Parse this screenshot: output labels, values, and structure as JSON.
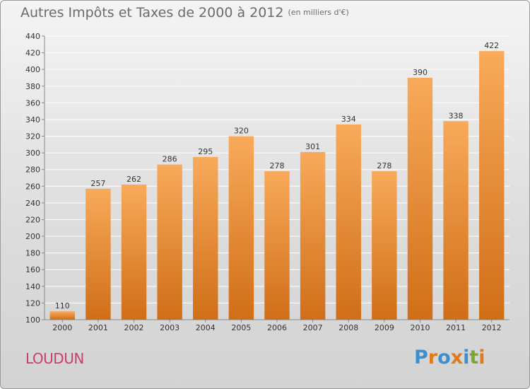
{
  "title": "Autres Impôts et Taxes de 2000 à 2012",
  "unit_note": "(en milliers d'€)",
  "commune": "LOUDUN",
  "logo": {
    "text": "Proxiti",
    "letter_colors": [
      "#3a8fd0",
      "#e07a1a",
      "#3a8fd0",
      "#e07a1a",
      "#3a8fd0",
      "#7aa830",
      "#e07a1a"
    ]
  },
  "colors": {
    "bar_top": "#f8aa5a",
    "bar_bottom": "#d06e18",
    "grid": "#ffffff",
    "axis_text": "#333333",
    "title": "#6b6b6b",
    "commune": "#c8406a"
  },
  "chart_data": {
    "type": "bar",
    "title": "Autres Impôts et Taxes de 2000 à 2012",
    "subtitle": "(en milliers d'€)",
    "categories": [
      "2000",
      "2001",
      "2002",
      "2003",
      "2004",
      "2005",
      "2006",
      "2007",
      "2008",
      "2009",
      "2010",
      "2011",
      "2012"
    ],
    "values": [
      110,
      257,
      262,
      286,
      295,
      320,
      278,
      301,
      334,
      278,
      390,
      338,
      422
    ],
    "ylim": [
      100,
      440
    ],
    "yticks": [
      100,
      120,
      140,
      160,
      180,
      200,
      220,
      240,
      260,
      280,
      300,
      320,
      340,
      360,
      380,
      400,
      420,
      440
    ],
    "grid": true,
    "xlabel": "",
    "ylabel": ""
  }
}
